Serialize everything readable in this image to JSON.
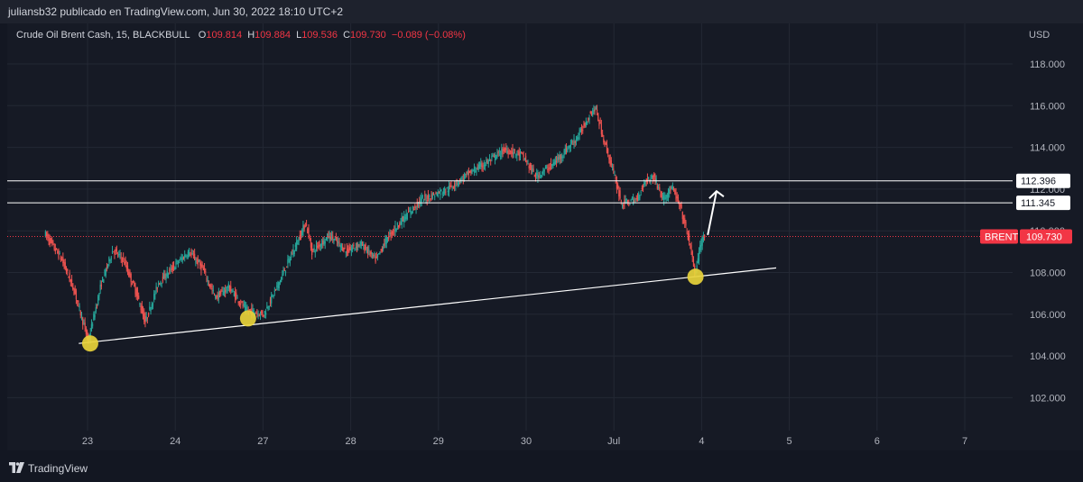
{
  "header": {
    "publisher_text": "juliansb32 publicado en TradingView.com, Jun 30, 2022 18:10 UTC+2"
  },
  "legend": {
    "symbol": "Crude Oil Brent Cash, 15, BLACKBULL",
    "open_label": "O",
    "open_value": "109.814",
    "high_label": "H",
    "high_value": "109.884",
    "low_label": "L",
    "low_value": "109.536",
    "close_label": "C",
    "close_value": "109.730",
    "change_value": "−0.089 (−0.08%)"
  },
  "footer": {
    "brand": "TradingView"
  },
  "colors": {
    "background": "#131722",
    "pane": "#161a25",
    "up": "#26a69a",
    "down": "#ef5350",
    "price_line": "#f23645",
    "highlight": "#e8d23a",
    "grid": "#232834",
    "axis_text": "#b2b5be"
  },
  "chart_data": {
    "type": "candlestick",
    "title": "Crude Oil Brent Cash, 15, BLACKBULL",
    "currency_label": "USD",
    "y_ticks": [
      "118.000",
      "116.000",
      "114.000",
      "112.000",
      "110.000",
      "108.000",
      "106.000",
      "104.000",
      "102.000"
    ],
    "ylim": [
      101.0,
      119.6
    ],
    "x_ticks": [
      "23",
      "24",
      "27",
      "28",
      "29",
      "30",
      "Jul",
      "4",
      "5",
      "6",
      "7"
    ],
    "grid": true,
    "price_path": [
      [
        0.0,
        109.9
      ],
      [
        0.2,
        108.6
      ],
      [
        0.35,
        107.0
      ],
      [
        0.5,
        104.7
      ],
      [
        0.65,
        107.5
      ],
      [
        0.78,
        109.1
      ],
      [
        0.9,
        108.6
      ],
      [
        1.05,
        107.0
      ],
      [
        1.15,
        105.6
      ],
      [
        1.3,
        107.5
      ],
      [
        1.5,
        108.4
      ],
      [
        1.65,
        109.0
      ],
      [
        1.8,
        108.2
      ],
      [
        1.95,
        106.8
      ],
      [
        2.1,
        107.3
      ],
      [
        2.3,
        106.2
      ],
      [
        2.5,
        106.0
      ],
      [
        2.65,
        107.3
      ],
      [
        2.8,
        108.7
      ],
      [
        2.98,
        110.4
      ],
      [
        3.05,
        109.0
      ],
      [
        3.25,
        109.8
      ],
      [
        3.45,
        109.0
      ],
      [
        3.6,
        109.4
      ],
      [
        3.78,
        108.6
      ],
      [
        3.9,
        109.6
      ],
      [
        4.05,
        110.4
      ],
      [
        4.3,
        111.5
      ],
      [
        4.6,
        112.0
      ],
      [
        4.82,
        112.7
      ],
      [
        5.05,
        113.3
      ],
      [
        5.25,
        113.9
      ],
      [
        5.45,
        113.6
      ],
      [
        5.6,
        112.6
      ],
      [
        5.8,
        113.2
      ],
      [
        5.95,
        113.9
      ],
      [
        6.08,
        114.5
      ],
      [
        6.22,
        115.6
      ],
      [
        6.28,
        115.9
      ],
      [
        6.38,
        114.3
      ],
      [
        6.48,
        112.9
      ],
      [
        6.58,
        111.3
      ],
      [
        6.75,
        111.5
      ],
      [
        6.85,
        112.4
      ],
      [
        6.95,
        112.6
      ],
      [
        7.05,
        111.5
      ],
      [
        7.15,
        112.1
      ],
      [
        7.25,
        111.1
      ],
      [
        7.35,
        109.5
      ],
      [
        7.42,
        107.9
      ],
      [
        7.48,
        109.4
      ],
      [
        7.52,
        109.73
      ]
    ],
    "current_price": 109.73,
    "price_label": "109.730",
    "symbol_tag": "BRENT",
    "horizontal_levels": [
      {
        "value": 112.396,
        "label": "112.396"
      },
      {
        "value": 111.345,
        "label": "111.345"
      }
    ],
    "trendline": {
      "x1": 0.4,
      "y1": 104.6,
      "x2": 8.35,
      "y2": 108.22
    },
    "highlights": [
      {
        "x": 0.53,
        "y": 104.6
      },
      {
        "x": 2.33,
        "y": 105.8
      },
      {
        "x": 7.43,
        "y": 107.8
      }
    ],
    "arrow": {
      "x1": 7.57,
      "y1": 109.8,
      "x2": 7.67,
      "y2": 111.9
    }
  }
}
